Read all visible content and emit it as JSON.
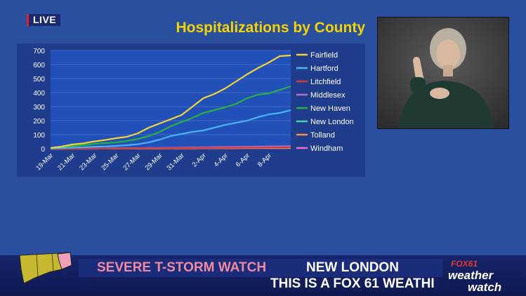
{
  "live_badge": "LIVE",
  "chart_data": {
    "type": "line",
    "title": "Hospitalizations by County",
    "xlabel": "",
    "ylabel": "",
    "ylim": [
      0,
      700
    ],
    "yticks": [
      0,
      100,
      200,
      300,
      400,
      500,
      600,
      700
    ],
    "x_tick_labels": [
      "19-Mar",
      "21-Mar",
      "23-Mar",
      "25-Mar",
      "27-Mar",
      "29-Mar",
      "31-Mar",
      "2-Apr",
      "4-Apr",
      "6-Apr",
      "8-Apr"
    ],
    "x_tick_days": [
      0,
      2,
      4,
      6,
      8,
      10,
      12,
      14,
      16,
      18,
      20
    ],
    "x_days": [
      0,
      1,
      2,
      3,
      4,
      5,
      6,
      7,
      8,
      9,
      10,
      11,
      12,
      13,
      14,
      15,
      16,
      17,
      18,
      19,
      20,
      21,
      22
    ],
    "legend_position": "right",
    "grid": true,
    "series": [
      {
        "name": "Fairfield",
        "color": "#f2d33a",
        "values": [
          5,
          15,
          30,
          38,
          52,
          62,
          75,
          85,
          110,
          150,
          180,
          210,
          240,
          300,
          360,
          390,
          430,
          480,
          530,
          575,
          615,
          660,
          665
        ]
      },
      {
        "name": "Hartford",
        "color": "#4ab2f0",
        "values": [
          2,
          4,
          8,
          10,
          14,
          16,
          20,
          25,
          32,
          45,
          65,
          90,
          105,
          120,
          130,
          150,
          170,
          185,
          200,
          225,
          245,
          255,
          275
        ]
      },
      {
        "name": "Litchfield",
        "color": "#d03a3a",
        "values": [
          0,
          0,
          0,
          1,
          1,
          1,
          2,
          2,
          3,
          3,
          4,
          4,
          5,
          5,
          6,
          6,
          7,
          7,
          8,
          8,
          9,
          9,
          10
        ]
      },
      {
        "name": "Middlesex",
        "color": "#b070d0",
        "values": [
          0,
          0,
          1,
          1,
          2,
          2,
          3,
          3,
          4,
          5,
          6,
          7,
          8,
          9,
          10,
          11,
          12,
          13,
          14,
          15,
          16,
          17,
          18
        ]
      },
      {
        "name": "New Haven",
        "color": "#29b040",
        "values": [
          3,
          10,
          20,
          25,
          35,
          40,
          45,
          55,
          70,
          90,
          120,
          160,
          190,
          220,
          255,
          275,
          295,
          320,
          360,
          385,
          395,
          420,
          445
        ]
      },
      {
        "name": "New London",
        "color": "#4ad0a8",
        "values": [
          0,
          0,
          1,
          1,
          2,
          2,
          3,
          3,
          4,
          5,
          5,
          6,
          7,
          8,
          9,
          10,
          11,
          12,
          13,
          14,
          15,
          16,
          17
        ]
      },
      {
        "name": "Tolland",
        "color": "#f09050",
        "values": [
          0,
          0,
          0,
          0,
          1,
          1,
          1,
          1,
          2,
          2,
          2,
          3,
          3,
          3,
          4,
          4,
          4,
          5,
          5,
          5,
          6,
          6,
          6
        ]
      },
      {
        "name": "Windham",
        "color": "#f070c0",
        "values": [
          0,
          0,
          0,
          0,
          0,
          1,
          1,
          1,
          1,
          1,
          2,
          2,
          2,
          2,
          3,
          3,
          3,
          3,
          4,
          4,
          4,
          4,
          5
        ]
      }
    ]
  },
  "ticker": {
    "alert": "SEVERE T-STORM WATCH",
    "county": "NEW LONDON",
    "crawl": "THIS IS A FOX 61 WEATHI"
  },
  "brand": {
    "line1": "FOX61",
    "line2": "weather",
    "line3": "watch"
  }
}
